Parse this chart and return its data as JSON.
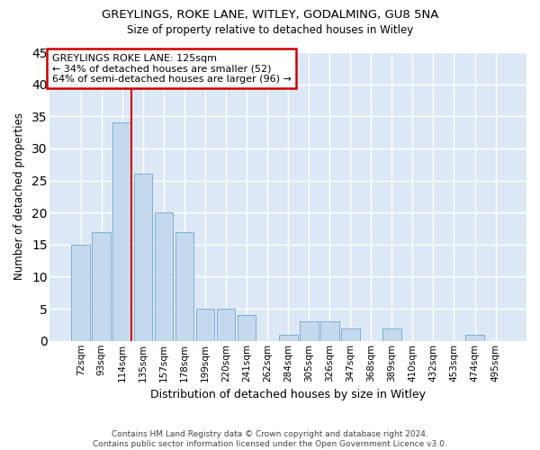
{
  "title1": "GREYLINGS, ROKE LANE, WITLEY, GODALMING, GU8 5NA",
  "title2": "Size of property relative to detached houses in Witley",
  "xlabel": "Distribution of detached houses by size in Witley",
  "ylabel": "Number of detached properties",
  "categories": [
    "72sqm",
    "93sqm",
    "114sqm",
    "135sqm",
    "157sqm",
    "178sqm",
    "199sqm",
    "220sqm",
    "241sqm",
    "262sqm",
    "284sqm",
    "305sqm",
    "326sqm",
    "347sqm",
    "368sqm",
    "389sqm",
    "410sqm",
    "432sqm",
    "453sqm",
    "474sqm",
    "495sqm"
  ],
  "values": [
    15,
    17,
    34,
    26,
    20,
    17,
    5,
    5,
    4,
    0,
    1,
    3,
    3,
    2,
    0,
    2,
    0,
    0,
    0,
    1,
    0
  ],
  "bar_color": "#c5d9ee",
  "bar_edge_color": "#7bafd4",
  "bg_color": "#dce8f5",
  "grid_color": "#ffffff",
  "vline_color": "#cc0000",
  "vline_x_index": 2,
  "annotation_text": "GREYLINGS ROKE LANE: 125sqm\n← 34% of detached houses are smaller (52)\n64% of semi-detached houses are larger (96) →",
  "annotation_box_color": "#ffffff",
  "annotation_box_edge": "#cc0000",
  "ylim": [
    0,
    45
  ],
  "yticks": [
    0,
    5,
    10,
    15,
    20,
    25,
    30,
    35,
    40,
    45
  ],
  "footer1": "Contains HM Land Registry data © Crown copyright and database right 2024.",
  "footer2": "Contains public sector information licensed under the Open Government Licence v3.0."
}
